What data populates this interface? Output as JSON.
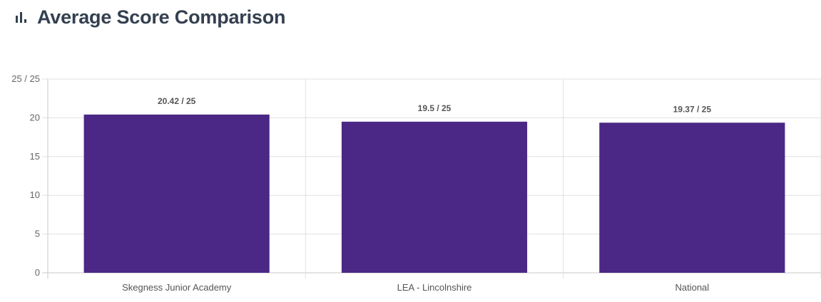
{
  "header": {
    "title": "Average Score Comparison",
    "icon": "bar-chart-icon"
  },
  "colors": {
    "bar": "#4b2885",
    "title": "#344050",
    "grid": "#e0e0e0",
    "axis": "#c8c8c8"
  },
  "chart_data": {
    "type": "bar",
    "title": "Average Score Comparison",
    "xlabel": "",
    "ylabel": "",
    "categories": [
      "Skegness Junior Academy",
      "LEA - Lincolnshire",
      "National"
    ],
    "values": [
      20.42,
      19.5,
      19.37
    ],
    "data_labels": [
      "20.42 / 25",
      "19.5 / 25",
      "19.37 / 25"
    ],
    "ylim": [
      0,
      25
    ],
    "yticks": [
      0,
      5,
      10,
      15,
      20,
      25
    ],
    "ytick_labels": [
      "0",
      "5",
      "10",
      "15",
      "20",
      "25 / 25"
    ],
    "grid": true,
    "legend": "none"
  }
}
